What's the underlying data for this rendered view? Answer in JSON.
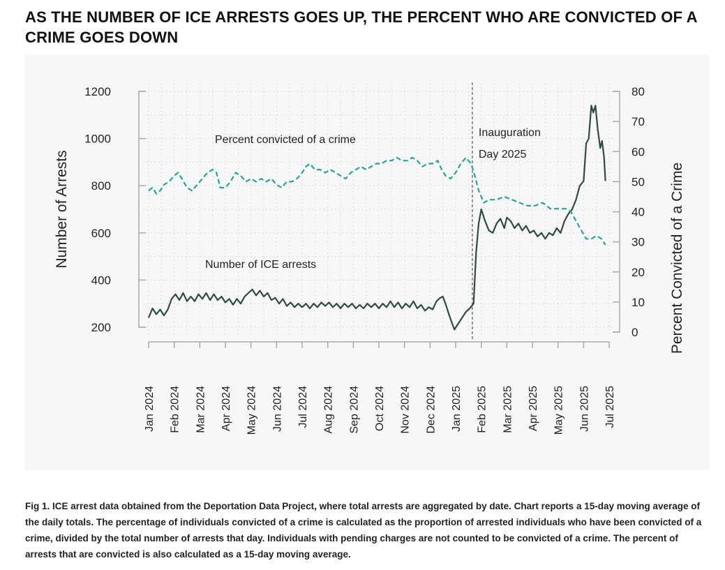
{
  "title": "AS THE NUMBER OF ICE ARRESTS GOES UP, THE PERCENT WHO ARE CONVICTED OF A CRIME GOES DOWN",
  "caption": "Fig 1.  ICE arrest data obtained from the Deportation Data Project, where total arrests are aggregated by date. Chart reports a 15-day moving average of the daily totals. The percentage of individuals convicted of a crime is calculated as the proportion of arrested individuals who have been convicted of a crime, divided by the total number of arrests that day. Individuals with pending charges are not counted to be convicted of a crime. The percent of arrests that are convicted is also calculated as a 15-day moving average.",
  "chart_data": {
    "type": "line",
    "ylabel": "Number of Arrests",
    "y2label": "Percent Convicted of a Crime",
    "ylim": [
      200,
      1200
    ],
    "y2lim": [
      0,
      80
    ],
    "yticks": [
      200,
      400,
      600,
      800,
      1000,
      1200
    ],
    "y2ticks": [
      0,
      10,
      20,
      30,
      40,
      50,
      60,
      70,
      80
    ],
    "x_unit": "months since Jan 2024",
    "xticks": [
      "Jan 2024",
      "Feb 2024",
      "Mar 2024",
      "Apr 2024",
      "May 2024",
      "Jun 2024",
      "Jul 2024",
      "Aug 2024",
      "Sep 2024",
      "Oct 2024",
      "Nov 2024",
      "Dec 2024",
      "Jan 2025",
      "Feb 2025",
      "Mar 2025",
      "Apr 2025",
      "May 2025",
      "Jun 2025",
      "Jul 2025"
    ],
    "grid": true,
    "annotation": {
      "lines": [
        "Inauguration",
        "Day 2025"
      ],
      "x": 12.65
    },
    "series": [
      {
        "name": "Number of ICE arrests",
        "axis": "left",
        "color": "#2f4a46",
        "style": "solid",
        "points": [
          [
            0,
            240
          ],
          [
            0.15,
            280
          ],
          [
            0.3,
            255
          ],
          [
            0.45,
            275
          ],
          [
            0.6,
            250
          ],
          [
            0.75,
            275
          ],
          [
            0.9,
            320
          ],
          [
            1.05,
            340
          ],
          [
            1.2,
            315
          ],
          [
            1.35,
            345
          ],
          [
            1.5,
            310
          ],
          [
            1.65,
            330
          ],
          [
            1.8,
            310
          ],
          [
            1.95,
            340
          ],
          [
            2.1,
            320
          ],
          [
            2.25,
            345
          ],
          [
            2.4,
            315
          ],
          [
            2.55,
            340
          ],
          [
            2.7,
            315
          ],
          [
            2.85,
            330
          ],
          [
            3.0,
            305
          ],
          [
            3.15,
            320
          ],
          [
            3.3,
            295
          ],
          [
            3.45,
            320
          ],
          [
            3.6,
            300
          ],
          [
            3.75,
            330
          ],
          [
            3.9,
            345
          ],
          [
            4.05,
            360
          ],
          [
            4.2,
            335
          ],
          [
            4.35,
            355
          ],
          [
            4.5,
            330
          ],
          [
            4.65,
            345
          ],
          [
            4.8,
            315
          ],
          [
            4.95,
            325
          ],
          [
            5.1,
            300
          ],
          [
            5.25,
            320
          ],
          [
            5.4,
            290
          ],
          [
            5.55,
            305
          ],
          [
            5.7,
            285
          ],
          [
            5.85,
            300
          ],
          [
            6.0,
            285
          ],
          [
            6.15,
            300
          ],
          [
            6.3,
            280
          ],
          [
            6.45,
            300
          ],
          [
            6.6,
            285
          ],
          [
            6.75,
            305
          ],
          [
            6.9,
            290
          ],
          [
            7.05,
            305
          ],
          [
            7.2,
            285
          ],
          [
            7.35,
            300
          ],
          [
            7.5,
            280
          ],
          [
            7.65,
            300
          ],
          [
            7.8,
            285
          ],
          [
            7.95,
            300
          ],
          [
            8.1,
            280
          ],
          [
            8.25,
            295
          ],
          [
            8.4,
            280
          ],
          [
            8.55,
            300
          ],
          [
            8.7,
            285
          ],
          [
            8.85,
            300
          ],
          [
            9.0,
            280
          ],
          [
            9.15,
            300
          ],
          [
            9.3,
            285
          ],
          [
            9.45,
            310
          ],
          [
            9.6,
            285
          ],
          [
            9.75,
            305
          ],
          [
            9.9,
            280
          ],
          [
            10.05,
            300
          ],
          [
            10.2,
            285
          ],
          [
            10.35,
            310
          ],
          [
            10.5,
            280
          ],
          [
            10.65,
            295
          ],
          [
            10.8,
            270
          ],
          [
            10.95,
            285
          ],
          [
            11.1,
            275
          ],
          [
            11.25,
            310
          ],
          [
            11.4,
            325
          ],
          [
            11.5,
            330
          ],
          [
            11.6,
            300
          ],
          [
            11.75,
            250
          ],
          [
            11.85,
            220
          ],
          [
            11.95,
            190
          ],
          [
            12.1,
            215
          ],
          [
            12.25,
            240
          ],
          [
            12.4,
            265
          ],
          [
            12.55,
            280
          ],
          [
            12.7,
            300
          ],
          [
            12.8,
            520
          ],
          [
            12.9,
            640
          ],
          [
            13.0,
            700
          ],
          [
            13.15,
            650
          ],
          [
            13.3,
            610
          ],
          [
            13.45,
            600
          ],
          [
            13.6,
            640
          ],
          [
            13.75,
            660
          ],
          [
            13.9,
            620
          ],
          [
            14.0,
            665
          ],
          [
            14.15,
            650
          ],
          [
            14.3,
            620
          ],
          [
            14.45,
            640
          ],
          [
            14.6,
            610
          ],
          [
            14.75,
            630
          ],
          [
            14.9,
            600
          ],
          [
            15.05,
            610
          ],
          [
            15.2,
            585
          ],
          [
            15.35,
            600
          ],
          [
            15.5,
            575
          ],
          [
            15.65,
            600
          ],
          [
            15.8,
            590
          ],
          [
            15.95,
            620
          ],
          [
            16.1,
            600
          ],
          [
            16.25,
            650
          ],
          [
            16.4,
            680
          ],
          [
            16.55,
            700
          ],
          [
            16.7,
            740
          ],
          [
            16.85,
            800
          ],
          [
            17.0,
            820
          ],
          [
            17.1,
            980
          ],
          [
            17.2,
            1000
          ],
          [
            17.3,
            1140
          ],
          [
            17.38,
            1110
          ],
          [
            17.46,
            1140
          ],
          [
            17.55,
            1040
          ],
          [
            17.65,
            960
          ],
          [
            17.72,
            990
          ],
          [
            17.8,
            920
          ],
          [
            17.85,
            820
          ]
        ]
      },
      {
        "name": "Percent convicted of a crime",
        "axis": "right",
        "color": "#1fa898",
        "style": "dashed",
        "points": [
          [
            0,
            47
          ],
          [
            0.15,
            48
          ],
          [
            0.3,
            46
          ],
          [
            0.45,
            47
          ],
          [
            0.6,
            49
          ],
          [
            0.8,
            50
          ],
          [
            1.0,
            52
          ],
          [
            1.15,
            53
          ],
          [
            1.3,
            51
          ],
          [
            1.5,
            48
          ],
          [
            1.7,
            47
          ],
          [
            1.9,
            49
          ],
          [
            2.1,
            51
          ],
          [
            2.3,
            53
          ],
          [
            2.5,
            54
          ],
          [
            2.65,
            53
          ],
          [
            2.8,
            48
          ],
          [
            3.0,
            48
          ],
          [
            3.2,
            50
          ],
          [
            3.4,
            53
          ],
          [
            3.6,
            52
          ],
          [
            3.8,
            50
          ],
          [
            4.0,
            51
          ],
          [
            4.2,
            50
          ],
          [
            4.4,
            51
          ],
          [
            4.6,
            50
          ],
          [
            4.8,
            51
          ],
          [
            5.0,
            49
          ],
          [
            5.2,
            48
          ],
          [
            5.4,
            50
          ],
          [
            5.6,
            50
          ],
          [
            5.8,
            51
          ],
          [
            6.0,
            53
          ],
          [
            6.15,
            55
          ],
          [
            6.3,
            56
          ],
          [
            6.5,
            54
          ],
          [
            6.7,
            54
          ],
          [
            6.9,
            53
          ],
          [
            7.1,
            54
          ],
          [
            7.3,
            53
          ],
          [
            7.5,
            52
          ],
          [
            7.7,
            51
          ],
          [
            7.9,
            53
          ],
          [
            8.1,
            54
          ],
          [
            8.3,
            55
          ],
          [
            8.5,
            54
          ],
          [
            8.7,
            55
          ],
          [
            8.9,
            56
          ],
          [
            9.1,
            56
          ],
          [
            9.3,
            57
          ],
          [
            9.5,
            57
          ],
          [
            9.7,
            58
          ],
          [
            9.9,
            57
          ],
          [
            10.1,
            57
          ],
          [
            10.3,
            58
          ],
          [
            10.5,
            57
          ],
          [
            10.7,
            55
          ],
          [
            10.9,
            56
          ],
          [
            11.1,
            56
          ],
          [
            11.3,
            57
          ],
          [
            11.45,
            54
          ],
          [
            11.6,
            52
          ],
          [
            11.8,
            51
          ],
          [
            12.0,
            53
          ],
          [
            12.2,
            56
          ],
          [
            12.4,
            58
          ],
          [
            12.6,
            56
          ],
          [
            12.75,
            52
          ],
          [
            12.9,
            47
          ],
          [
            13.1,
            43
          ],
          [
            13.3,
            44
          ],
          [
            13.6,
            44
          ],
          [
            13.9,
            45
          ],
          [
            14.2,
            44
          ],
          [
            14.5,
            43
          ],
          [
            14.8,
            42
          ],
          [
            15.1,
            42
          ],
          [
            15.4,
            43
          ],
          [
            15.7,
            41
          ],
          [
            16.0,
            41
          ],
          [
            16.3,
            41
          ],
          [
            16.5,
            40
          ],
          [
            16.7,
            37
          ],
          [
            16.9,
            34
          ],
          [
            17.1,
            31
          ],
          [
            17.3,
            31
          ],
          [
            17.5,
            32
          ],
          [
            17.7,
            31
          ],
          [
            17.85,
            29
          ]
        ]
      }
    ]
  }
}
